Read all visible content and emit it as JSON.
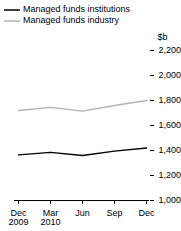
{
  "chart_data": {
    "type": "line",
    "categories": [
      "Dec\n2009",
      "Mar\n2010",
      "Jun",
      "Sep",
      "Dec"
    ],
    "y_label": "$b",
    "series": [
      {
        "name": "Managed funds institutions",
        "color": "#000000",
        "values": [
          1365,
          1385,
          1360,
          1395,
          1420
        ]
      },
      {
        "name": "Managed funds industry",
        "color": "#b3b3b3",
        "values": [
          1720,
          1745,
          1715,
          1760,
          1800
        ]
      }
    ],
    "ylim": [
      1000,
      2200
    ],
    "yticks": [
      1000,
      1200,
      1400,
      1600,
      1800,
      2000,
      2200
    ],
    "grid": false,
    "legend": "top-left"
  }
}
